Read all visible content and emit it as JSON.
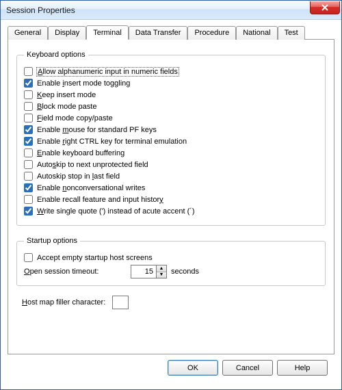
{
  "window": {
    "title": "Session Properties"
  },
  "tabs": {
    "items": [
      {
        "label": "General"
      },
      {
        "label": "Display"
      },
      {
        "label": "Terminal"
      },
      {
        "label": "Data Transfer"
      },
      {
        "label": "Procedure"
      },
      {
        "label": "National"
      },
      {
        "label": "Test"
      }
    ],
    "active_index": 2
  },
  "keyboard_options": {
    "legend": "Keyboard options",
    "items": [
      {
        "label_pre": "",
        "u": "A",
        "label_post": "llow alphanumeric input in numeric fields",
        "checked": false,
        "focus": true
      },
      {
        "label_pre": "Enable ",
        "u": "i",
        "label_post": "nsert mode toggling",
        "checked": true
      },
      {
        "label_pre": "",
        "u": "K",
        "label_post": "eep insert mode",
        "checked": false
      },
      {
        "label_pre": "",
        "u": "B",
        "label_post": "lock mode paste",
        "checked": false
      },
      {
        "label_pre": "",
        "u": "F",
        "label_post": "ield mode copy/paste",
        "checked": false
      },
      {
        "label_pre": "Enable ",
        "u": "m",
        "label_post": "ouse for standard PF keys",
        "checked": true
      },
      {
        "label_pre": "Enable ",
        "u": "r",
        "label_post": "ight CTRL key for terminal emulation",
        "checked": true
      },
      {
        "label_pre": "",
        "u": "E",
        "label_post": "nable keyboard buffering",
        "checked": false
      },
      {
        "label_pre": "Auto",
        "u": "s",
        "label_post": "kip to next unprotected field",
        "checked": false
      },
      {
        "label_pre": "Autoskip stop in ",
        "u": "l",
        "label_post": "ast field",
        "checked": false
      },
      {
        "label_pre": "Enable ",
        "u": "n",
        "label_post": "onconversational writes",
        "checked": true
      },
      {
        "label_pre": "Enable recall feature and input histor",
        "u": "y",
        "label_post": "",
        "checked": false
      },
      {
        "label_pre": "",
        "u": "W",
        "label_post": "rite single quote (') instead of acute accent (´)",
        "checked": true
      }
    ]
  },
  "startup_options": {
    "legend": "Startup options",
    "accept_empty": {
      "label_pre": "Accept empty startup host screens",
      "checked": false
    },
    "timeout": {
      "label_pre": "",
      "u": "O",
      "label_post": "pen session timeout:",
      "value": "15",
      "suffix": "seconds"
    }
  },
  "hostmap": {
    "label_pre": "",
    "u": "H",
    "label_post": "ost map filler character:",
    "value": ""
  },
  "buttons": {
    "ok": "OK",
    "cancel": "Cancel",
    "help": "Help"
  }
}
